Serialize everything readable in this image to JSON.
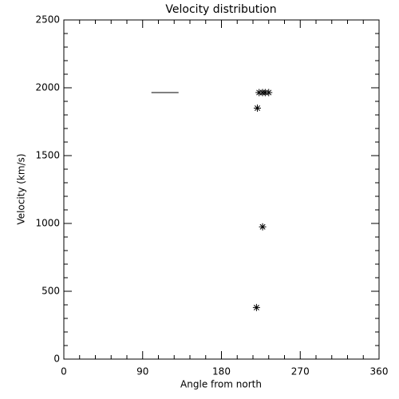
{
  "chart_data": {
    "type": "scatter",
    "title": "Velocity distribution",
    "x_label": "Angle from north",
    "y_label": "Velocity (km/s)",
    "xlim": [
      0,
      360
    ],
    "ylim": [
      0,
      2500
    ],
    "xticks": [
      0,
      90,
      180,
      270,
      360
    ],
    "yticks": [
      0,
      500,
      1000,
      1500,
      2000,
      2500
    ],
    "minor_ticks": 5,
    "series": [
      {
        "type": "scatter",
        "marker": "asterisk",
        "color": "#000000",
        "x": [
          220,
          227,
          221,
          223,
          227,
          230,
          234
        ],
        "values": [
          380,
          975,
          1850,
          1965,
          1965,
          1965,
          1965
        ]
      },
      {
        "type": "line",
        "color": "#000000",
        "x": [
          100,
          131
        ],
        "values": [
          1965,
          1965
        ]
      }
    ]
  }
}
